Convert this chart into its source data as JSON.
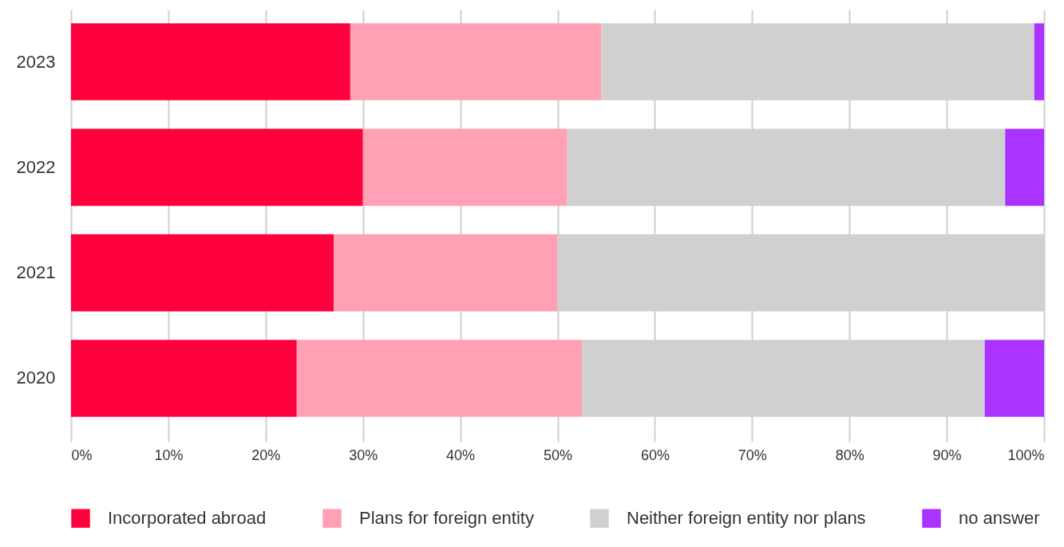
{
  "chart_data": {
    "type": "bar",
    "orientation": "horizontal",
    "stacked": true,
    "categories": [
      "2023",
      "2022",
      "2021",
      "2020"
    ],
    "series": [
      {
        "name": "Incorporated abroad",
        "color": "#ff003c",
        "values": [
          28.7,
          30,
          27,
          23.2
        ]
      },
      {
        "name": "Plans for foreign entity",
        "color": "#ffa0b4",
        "values": [
          25.8,
          21,
          23,
          29.3
        ]
      },
      {
        "name": "Neither foreign entity nor plans",
        "color": "#d0d0d0",
        "values": [
          44.5,
          45,
          50,
          41.4
        ]
      },
      {
        "name": "no answer",
        "color": "#aa33ff",
        "values": [
          1,
          4,
          0,
          6.1
        ]
      }
    ],
    "xlim": [
      0,
      100
    ],
    "xticks": [
      {
        "value": 0,
        "label": "0%"
      },
      {
        "value": 10,
        "label": "10%"
      },
      {
        "value": 20,
        "label": "20%"
      },
      {
        "value": 30,
        "label": "30%"
      },
      {
        "value": 40,
        "label": "40%"
      },
      {
        "value": 50,
        "label": "50%"
      },
      {
        "value": 60,
        "label": "60%"
      },
      {
        "value": 70,
        "label": "70%"
      },
      {
        "value": 80,
        "label": "80%"
      },
      {
        "value": 90,
        "label": "90%"
      },
      {
        "value": 100,
        "label": "100%"
      }
    ],
    "grid": "x",
    "legend": "bottom"
  }
}
